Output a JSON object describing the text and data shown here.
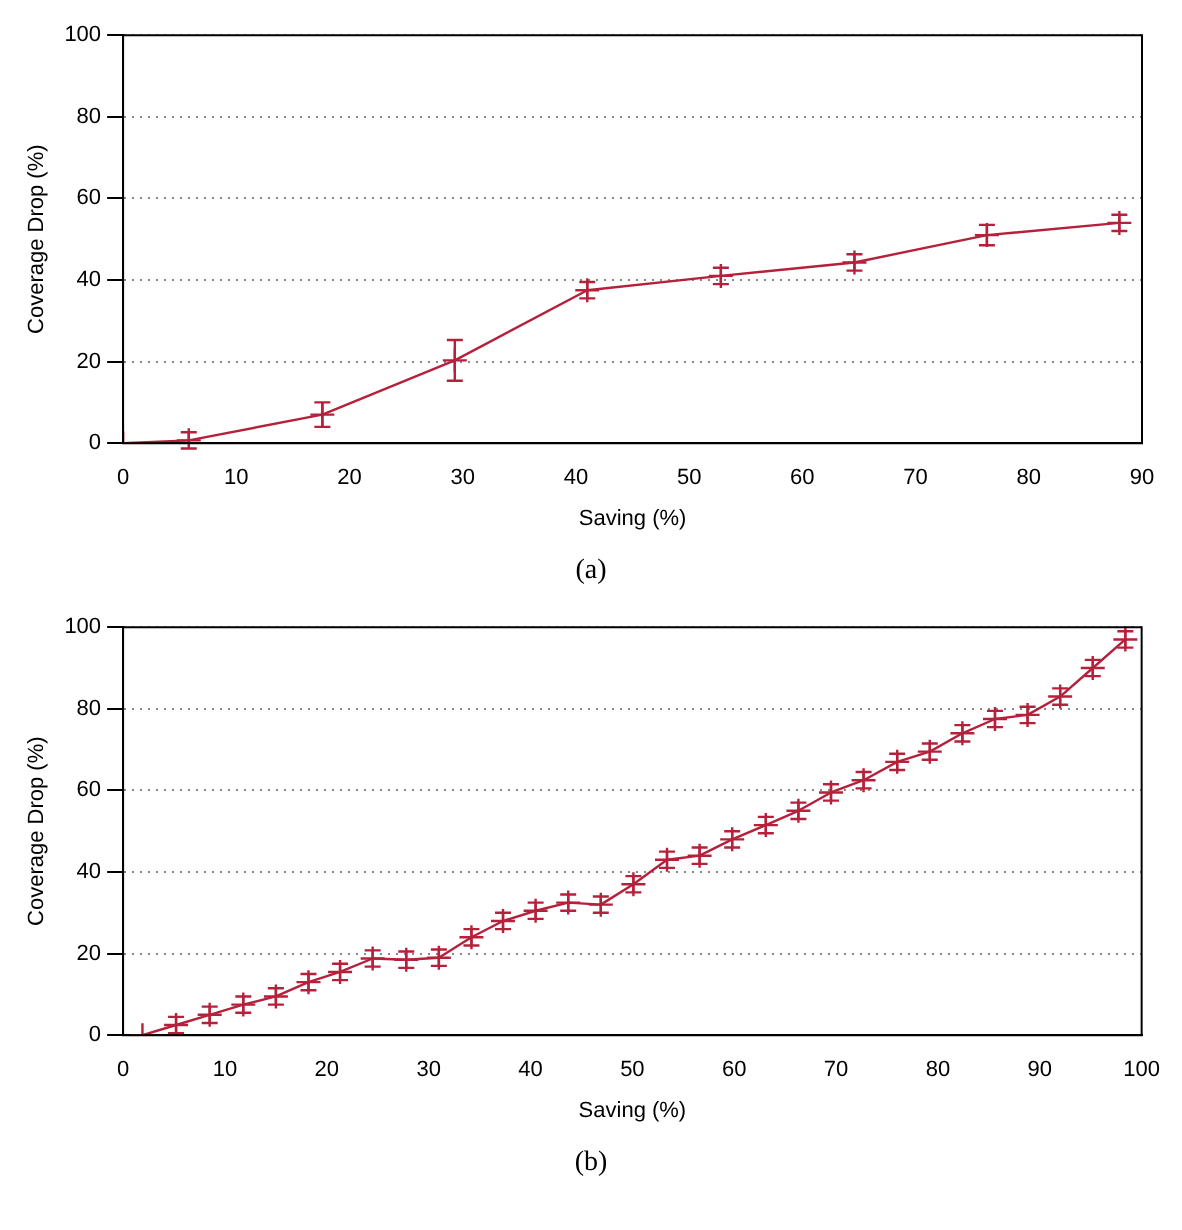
{
  "chart_data": [
    {
      "type": "line",
      "xlabel": "Saving (%)",
      "ylabel": "Coverage Drop (%)",
      "annotations": [
        "(a)"
      ],
      "xlim": [
        0,
        90
      ],
      "xticks": [
        0,
        10,
        20,
        30,
        40,
        50,
        60,
        70,
        80,
        90
      ],
      "ylim": [
        0,
        100
      ],
      "yticks": [
        0,
        20,
        40,
        60,
        80,
        100
      ],
      "grid": "y",
      "marker": "cross",
      "line_style": "solid",
      "series": [
        {
          "color": "#b5213b",
          "x": [
            0,
            5.8,
            17.6,
            29.3,
            41,
            52.8,
            64.6,
            76.3,
            88
          ],
          "values": [
            0,
            0.7,
            7,
            20.3,
            37.5,
            41,
            44.3,
            51,
            54
          ],
          "errors": [
            null,
            2,
            3,
            5,
            2,
            2,
            2,
            2.5,
            2
          ]
        }
      ]
    },
    {
      "type": "line",
      "xlabel": "Saving (%)",
      "ylabel": "Coverage Drop (%)",
      "annotations": [
        "(b)"
      ],
      "xlim": [
        0,
        100
      ],
      "xticks": [
        0,
        10,
        20,
        30,
        40,
        50,
        60,
        70,
        80,
        90,
        100
      ],
      "ylim": [
        0,
        100
      ],
      "yticks": [
        0,
        20,
        40,
        60,
        80,
        100
      ],
      "grid": "y",
      "marker": "cross",
      "line_style": "solid",
      "series": [
        {
          "color": "#b5213b",
          "x": [
            1.9,
            5.2,
            8.5,
            11.8,
            15,
            18.2,
            21.3,
            24.5,
            27.8,
            31,
            34.2,
            37.3,
            40.5,
            43.7,
            46.9,
            50.1,
            53.4,
            56.6,
            59.8,
            63.1,
            66.3,
            69.5,
            72.7,
            76,
            79.2,
            82.4,
            85.6,
            88.8,
            92,
            95.2,
            98.4
          ],
          "values": [
            0,
            2.5,
            5,
            7.5,
            9.5,
            13,
            15.5,
            18.8,
            18.5,
            19,
            24,
            28,
            30.5,
            32.5,
            32,
            37,
            43,
            44,
            48,
            51.5,
            55,
            59.5,
            62.5,
            67,
            69.5,
            74,
            77.5,
            78.5,
            83,
            90,
            97
          ],
          "errors": [
            null,
            2,
            2,
            2,
            2,
            2,
            2,
            2,
            2,
            2,
            2,
            2,
            2,
            2,
            2,
            2,
            2,
            2,
            2,
            2,
            2,
            2,
            2,
            2,
            2,
            2,
            2,
            2,
            2,
            2,
            2
          ]
        }
      ]
    }
  ]
}
